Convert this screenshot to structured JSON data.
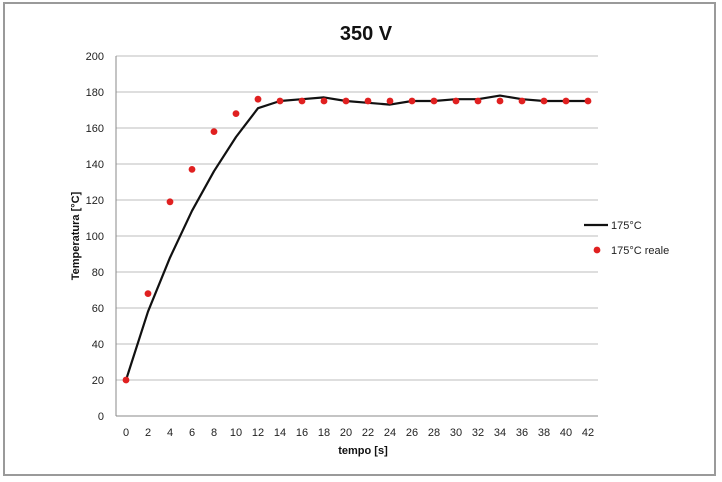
{
  "chart_data": {
    "type": "line",
    "title": "350 V",
    "xlabel": "tempo [s]",
    "ylabel": "Temperatura [°C]",
    "xlim": [
      0,
      42
    ],
    "ylim": [
      0,
      200
    ],
    "x_ticks": [
      0,
      2,
      4,
      6,
      8,
      10,
      12,
      14,
      16,
      18,
      20,
      22,
      24,
      26,
      28,
      30,
      32,
      34,
      36,
      38,
      40,
      42
    ],
    "y_ticks": [
      0,
      20,
      40,
      60,
      80,
      100,
      120,
      140,
      160,
      180,
      200
    ],
    "grid": "horizontal",
    "legend_position": "right",
    "series": [
      {
        "name": "175°C",
        "style": "line",
        "color": "#111111",
        "x": [
          0,
          2,
          4,
          6,
          8,
          10,
          12,
          14,
          16,
          18,
          20,
          22,
          24,
          26,
          28,
          30,
          32,
          34,
          36,
          38,
          40,
          42
        ],
        "y": [
          20,
          58,
          88,
          114,
          136,
          155,
          171,
          175,
          176,
          177,
          175,
          174,
          173,
          175,
          175,
          176,
          176,
          178,
          176,
          175,
          175,
          175
        ]
      },
      {
        "name": "175°C reale",
        "style": "scatter",
        "color": "#e02020",
        "x": [
          0,
          2,
          4,
          6,
          8,
          10,
          12,
          14,
          16,
          18,
          20,
          22,
          24,
          26,
          28,
          30,
          32,
          34,
          36,
          38,
          40,
          42
        ],
        "y": [
          20,
          68,
          119,
          137,
          158,
          168,
          176,
          175,
          175,
          175,
          175,
          175,
          175,
          175,
          175,
          175,
          175,
          175,
          175,
          175,
          175,
          175
        ]
      }
    ]
  }
}
